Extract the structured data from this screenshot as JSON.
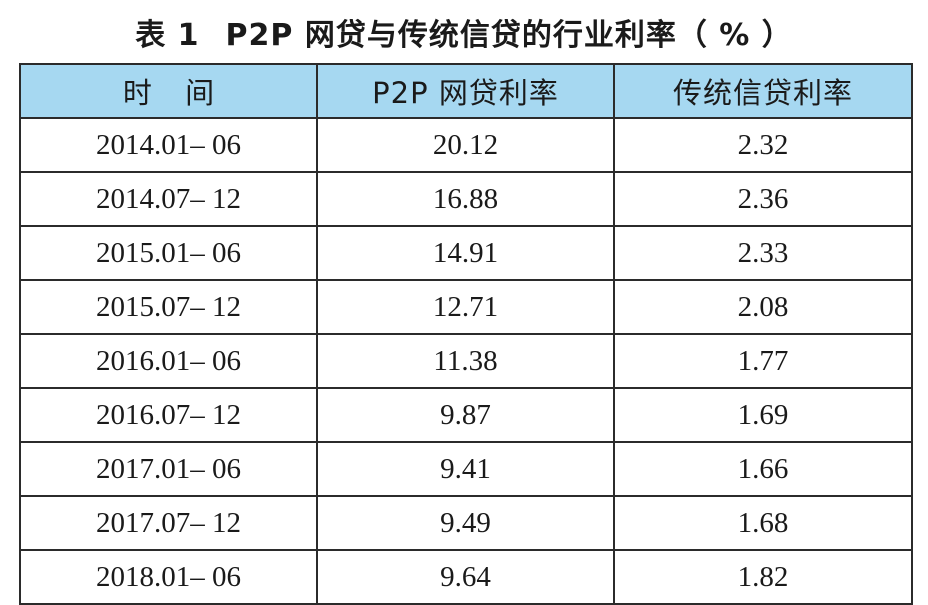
{
  "caption": {
    "number": "表 1",
    "title": "P2P 网贷与传统信贷的行业利率（ % ）"
  },
  "table": {
    "header_bg": "#a6d8f1",
    "border_color": "#2b2b2b",
    "headers": [
      "时 间",
      "P2P 网贷利率",
      "传统信贷利率"
    ],
    "rows": [
      [
        "2014.01– 06",
        "20.12",
        "2.32"
      ],
      [
        "2014.07– 12",
        "16.88",
        "2.36"
      ],
      [
        "2015.01– 06",
        "14.91",
        "2.33"
      ],
      [
        "2015.07– 12",
        "12.71",
        "2.08"
      ],
      [
        "2016.01– 06",
        "11.38",
        "1.77"
      ],
      [
        "2016.07– 12",
        "9.87",
        "1.69"
      ],
      [
        "2017.01– 06",
        "9.41",
        "1.66"
      ],
      [
        "2017.07– 12",
        "9.49",
        "1.68"
      ],
      [
        "2018.01– 06",
        "9.64",
        "1.82"
      ]
    ]
  }
}
